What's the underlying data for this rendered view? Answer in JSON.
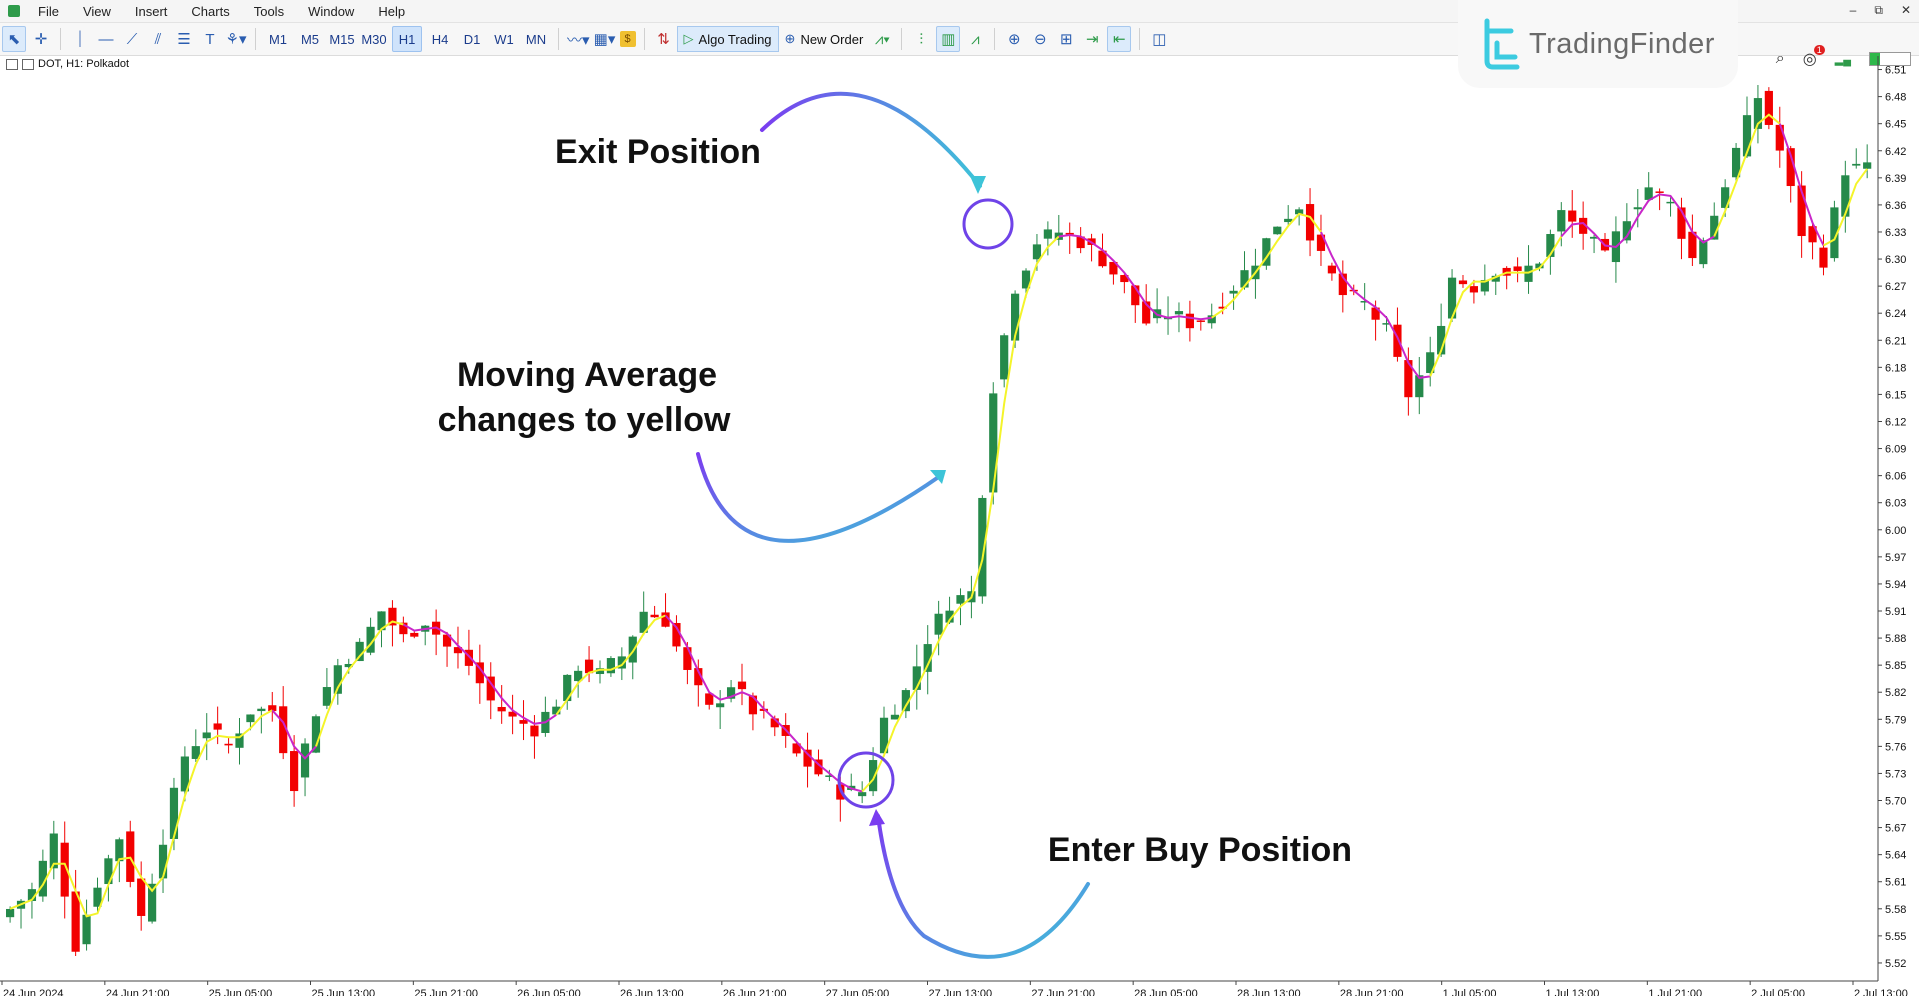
{
  "menu": {
    "items": [
      "File",
      "View",
      "Insert",
      "Charts",
      "Tools",
      "Window",
      "Help"
    ]
  },
  "toolbar": {
    "timeframes": [
      "M1",
      "M5",
      "M15",
      "M30",
      "H1",
      "H4",
      "D1",
      "W1",
      "MN"
    ],
    "active_timeframe": "H1",
    "algo_trading_label": "Algo Trading",
    "new_order_label": "New Order",
    "notification_badge": "1"
  },
  "window_controls": {
    "minimize": "–",
    "restore": "⧉",
    "close": "✕"
  },
  "chart_header": {
    "symbol_line": "DOT, H1:  Polkadot"
  },
  "logo": {
    "text": "TradingFinder"
  },
  "annotations": {
    "exit": "Exit Position",
    "ma_line1": "Moving Average",
    "ma_line2": "changes to yellow",
    "enter": "Enter Buy Position"
  },
  "colors": {
    "bull": "#25894a",
    "bear": "#f20000",
    "ma_up": "#f4f42a",
    "ma_down": "#c926c9",
    "arrow_start": "#7a3df0",
    "arrow_end": "#3dc4d8"
  },
  "chart_data": {
    "type": "candlestick",
    "title": "DOT, H1:  Polkadot",
    "x_tick_labels": [
      "24 Jun 2024",
      "24 Jun 21:00",
      "25 Jun 05:00",
      "25 Jun 13:00",
      "25 Jun 21:00",
      "26 Jun 05:00",
      "26 Jun 13:00",
      "26 Jun 21:00",
      "27 Jun 05:00",
      "27 Jun 13:00",
      "27 Jun 21:00",
      "28 Jun 05:00",
      "28 Jun 13:00",
      "28 Jun 21:00",
      "1 Jul 05:00",
      "1 Jul 13:00",
      "1 Jul 21:00",
      "2 Jul 05:00",
      "2 Jul 13:00"
    ],
    "y_tick_labels": [
      "6.51",
      "6.48",
      "6.45",
      "6.42",
      "6.39",
      "6.36",
      "6.33",
      "6.30",
      "6.27",
      "6.24",
      "6.21",
      "6.18",
      "6.15",
      "6.12",
      "6.09",
      "6.06",
      "6.03",
      "6.00",
      "5.97",
      "5.94",
      "5.91",
      "5.88",
      "5.85",
      "5.82",
      "5.79",
      "5.76",
      "5.73",
      "5.70",
      "5.67",
      "5.64",
      "5.61",
      "5.58",
      "5.55",
      "5.52"
    ],
    "ylim": [
      5.5,
      6.525
    ],
    "close_points": [
      [
        0,
        5.58
      ],
      [
        2,
        5.6
      ],
      [
        4,
        5.66
      ],
      [
        6,
        5.54
      ],
      [
        8,
        5.61
      ],
      [
        10,
        5.66
      ],
      [
        12,
        5.57
      ],
      [
        14,
        5.66
      ],
      [
        16,
        5.75
      ],
      [
        18,
        5.78
      ],
      [
        20,
        5.76
      ],
      [
        22,
        5.8
      ],
      [
        24,
        5.8
      ],
      [
        26,
        5.72
      ],
      [
        28,
        5.8
      ],
      [
        30,
        5.85
      ],
      [
        32,
        5.87
      ],
      [
        34,
        5.91
      ],
      [
        36,
        5.88
      ],
      [
        38,
        5.9
      ],
      [
        40,
        5.87
      ],
      [
        42,
        5.85
      ],
      [
        44,
        5.81
      ],
      [
        46,
        5.79
      ],
      [
        48,
        5.78
      ],
      [
        50,
        5.81
      ],
      [
        52,
        5.85
      ],
      [
        54,
        5.84
      ],
      [
        56,
        5.86
      ],
      [
        58,
        5.91
      ],
      [
        60,
        5.9
      ],
      [
        62,
        5.84
      ],
      [
        64,
        5.8
      ],
      [
        66,
        5.83
      ],
      [
        68,
        5.8
      ],
      [
        70,
        5.78
      ],
      [
        72,
        5.75
      ],
      [
        74,
        5.73
      ],
      [
        76,
        5.71
      ],
      [
        78,
        5.71
      ],
      [
        80,
        5.79
      ],
      [
        82,
        5.82
      ],
      [
        84,
        5.88
      ],
      [
        86,
        5.92
      ],
      [
        88,
        5.93
      ],
      [
        90,
        6.16
      ],
      [
        92,
        6.27
      ],
      [
        94,
        6.32
      ],
      [
        96,
        6.33
      ],
      [
        98,
        6.32
      ],
      [
        100,
        6.3
      ],
      [
        102,
        6.27
      ],
      [
        104,
        6.23
      ],
      [
        106,
        6.24
      ],
      [
        108,
        6.23
      ],
      [
        110,
        6.24
      ],
      [
        112,
        6.27
      ],
      [
        114,
        6.3
      ],
      [
        116,
        6.34
      ],
      [
        118,
        6.36
      ],
      [
        120,
        6.3
      ],
      [
        122,
        6.26
      ],
      [
        124,
        6.25
      ],
      [
        126,
        6.22
      ],
      [
        128,
        6.15
      ],
      [
        130,
        6.19
      ],
      [
        132,
        6.28
      ],
      [
        134,
        6.27
      ],
      [
        136,
        6.29
      ],
      [
        138,
        6.28
      ],
      [
        140,
        6.3
      ],
      [
        142,
        6.35
      ],
      [
        144,
        6.33
      ],
      [
        146,
        6.3
      ],
      [
        148,
        6.35
      ],
      [
        150,
        6.38
      ],
      [
        152,
        6.36
      ],
      [
        154,
        6.3
      ],
      [
        156,
        6.35
      ],
      [
        158,
        6.42
      ],
      [
        160,
        6.48
      ],
      [
        162,
        6.42
      ],
      [
        164,
        6.33
      ],
      [
        166,
        6.3
      ],
      [
        168,
        6.4
      ],
      [
        170,
        6.4
      ]
    ],
    "ma_color_segments": [
      {
        "from": 0,
        "to": 14,
        "color": "up"
      },
      {
        "from": 14,
        "to": 24,
        "color": "up"
      },
      {
        "from": 24,
        "to": 28,
        "color": "down"
      },
      {
        "from": 28,
        "to": 36,
        "color": "up"
      },
      {
        "from": 36,
        "to": 50,
        "color": "down"
      },
      {
        "from": 50,
        "to": 60,
        "color": "up"
      },
      {
        "from": 60,
        "to": 78,
        "color": "down"
      },
      {
        "from": 78,
        "to": 96,
        "color": "up"
      },
      {
        "from": 96,
        "to": 110,
        "color": "down"
      },
      {
        "from": 110,
        "to": 120,
        "color": "up"
      },
      {
        "from": 120,
        "to": 130,
        "color": "down"
      },
      {
        "from": 130,
        "to": 142,
        "color": "up"
      },
      {
        "from": 142,
        "to": 156,
        "color": "down"
      },
      {
        "from": 156,
        "to": 162,
        "color": "up"
      },
      {
        "from": 162,
        "to": 166,
        "color": "down"
      },
      {
        "from": 166,
        "to": 170,
        "color": "up"
      }
    ],
    "entry_marker": {
      "candle": 78,
      "price": 5.715
    },
    "exit_marker": {
      "candle": 94,
      "price": 6.34
    }
  }
}
